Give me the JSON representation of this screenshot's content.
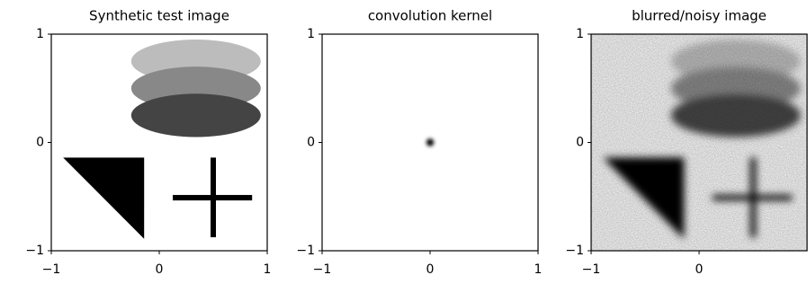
{
  "chart_data": [
    {
      "type": "image",
      "title": "Synthetic test image",
      "xlim": [
        -1,
        1
      ],
      "ylim": [
        -1,
        1
      ],
      "xticks": [
        {
          "value": -1,
          "label": "−1"
        },
        0,
        1
      ],
      "yticks": [
        {
          "value": -1,
          "label": "−1"
        },
        0,
        1
      ]
    },
    {
      "type": "image",
      "title": "convolution kernel",
      "xlim": [
        -1,
        1
      ],
      "ylim": [
        -1,
        1
      ],
      "xticks": [
        {
          "value": -1,
          "label": "−1"
        },
        0,
        1
      ],
      "yticks": [
        {
          "value": -1,
          "label": "−1"
        },
        0,
        1
      ]
    },
    {
      "type": "image",
      "title": "blurred/noisy image",
      "xlim": [
        -1,
        1
      ],
      "ylim": [
        -1,
        1
      ],
      "xticks": [
        {
          "value": -1,
          "label": "−1"
        },
        0
      ],
      "yticks": [
        {
          "value": -1,
          "label": "−1"
        },
        0,
        1
      ]
    }
  ]
}
